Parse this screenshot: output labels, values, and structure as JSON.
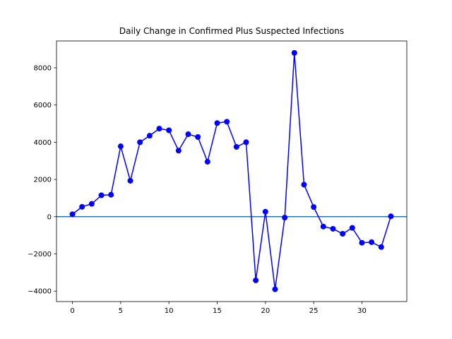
{
  "chart_data": {
    "type": "line",
    "title": "Daily Change in Confirmed Plus Suspected Infections",
    "xlabel": "",
    "ylabel": "",
    "xlim": [
      -1.65,
      34.65
    ],
    "ylim": [
      -4560,
      9440
    ],
    "x_ticks": [
      0,
      5,
      10,
      15,
      20,
      25,
      30
    ],
    "y_ticks": [
      -4000,
      -2000,
      0,
      2000,
      4000,
      6000,
      8000
    ],
    "grid": false,
    "legend": "none",
    "reference_line": {
      "y": 0,
      "color": "#1f77b4"
    },
    "series": [
      {
        "color": "#0000ff",
        "marker": "circle",
        "x": [
          0,
          1,
          2,
          3,
          4,
          5,
          6,
          7,
          8,
          9,
          10,
          11,
          12,
          13,
          14,
          15,
          16,
          17,
          18,
          19,
          20,
          21,
          22,
          23,
          24,
          25,
          26,
          27,
          28,
          29,
          30,
          31,
          32,
          33
        ],
        "y": [
          130,
          530,
          690,
          1150,
          1180,
          3780,
          1930,
          4000,
          4350,
          4730,
          4640,
          3550,
          4430,
          4280,
          2950,
          5030,
          5100,
          3750,
          4000,
          -3420,
          270,
          -3900,
          -50,
          8800,
          1720,
          520,
          -530,
          -650,
          -920,
          -600,
          -1400,
          -1370,
          -1630,
          20
        ]
      }
    ]
  }
}
